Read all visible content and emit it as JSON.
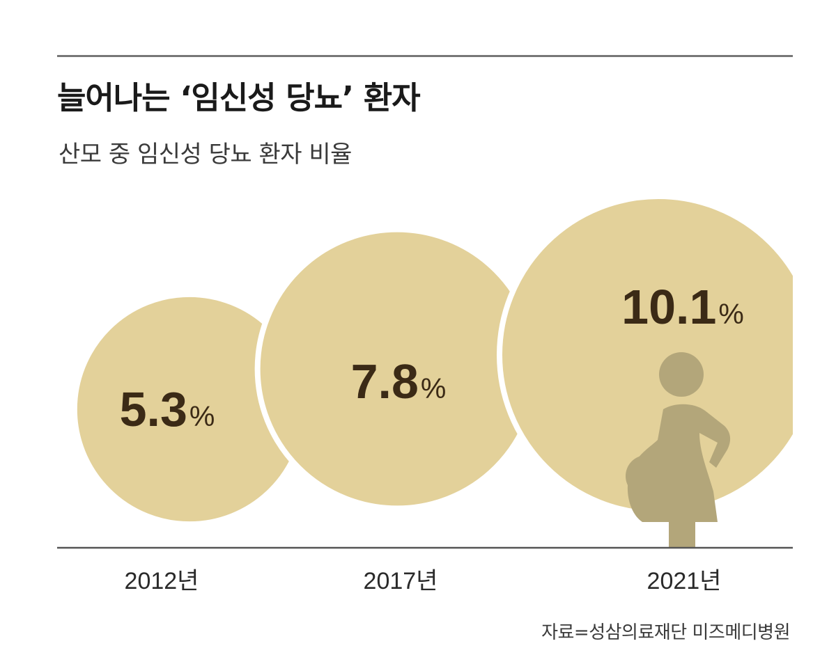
{
  "header": {
    "title": "늘어나는 ‘임신성 당뇨’ 환자",
    "subtitle": "산모 중 임신성 당뇨 환자 비율"
  },
  "colors": {
    "bubble": "#e3d19a",
    "bubble_outline": "#ffffff",
    "value_text": "#3b2a16",
    "icon": "#b3a67a",
    "axis_line": "#555555",
    "top_rule": "#777777"
  },
  "icon": "pregnant-woman-icon",
  "chart_data": {
    "type": "bubble",
    "title": "늘어나는 ‘임신성 당뇨’ 환자",
    "subtitle": "산모 중 임신성 당뇨 환자 비율",
    "unit": "%",
    "categories": [
      "2012년",
      "2017년",
      "2021년"
    ],
    "values": [
      5.3,
      7.8,
      10.1
    ],
    "value_labels": [
      "5.3",
      "7.8",
      "10.1"
    ]
  },
  "source": "자료=성삼의료재단 미즈메디병원"
}
